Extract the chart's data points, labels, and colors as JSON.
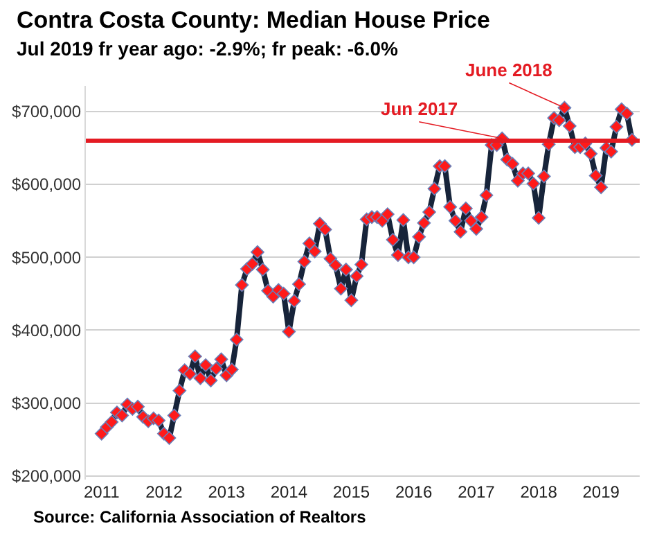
{
  "chart_data": {
    "type": "line",
    "title": "Contra Costa County: Median House Price",
    "subtitle": "Jul 2019 fr year ago: -2.9%; fr peak: -6.0%",
    "x": [
      "2011-01",
      "2011-02",
      "2011-03",
      "2011-04",
      "2011-05",
      "2011-06",
      "2011-07",
      "2011-08",
      "2011-09",
      "2011-10",
      "2011-11",
      "2011-12",
      "2012-01",
      "2012-02",
      "2012-03",
      "2012-04",
      "2012-05",
      "2012-06",
      "2012-07",
      "2012-08",
      "2012-09",
      "2012-10",
      "2012-11",
      "2012-12",
      "2013-01",
      "2013-02",
      "2013-03",
      "2013-04",
      "2013-05",
      "2013-06",
      "2013-07",
      "2013-08",
      "2013-09",
      "2013-10",
      "2013-11",
      "2013-12",
      "2014-01",
      "2014-02",
      "2014-03",
      "2014-04",
      "2014-05",
      "2014-06",
      "2014-07",
      "2014-08",
      "2014-09",
      "2014-10",
      "2014-11",
      "2014-12",
      "2015-01",
      "2015-02",
      "2015-03",
      "2015-04",
      "2015-05",
      "2015-06",
      "2015-07",
      "2015-08",
      "2015-09",
      "2015-10",
      "2015-11",
      "2015-12",
      "2016-01",
      "2016-02",
      "2016-03",
      "2016-04",
      "2016-05",
      "2016-06",
      "2016-07",
      "2016-08",
      "2016-09",
      "2016-10",
      "2016-11",
      "2016-12",
      "2017-01",
      "2017-02",
      "2017-03",
      "2017-04",
      "2017-05",
      "2017-06",
      "2017-07",
      "2017-08",
      "2017-09",
      "2017-10",
      "2017-11",
      "2017-12",
      "2018-01",
      "2018-02",
      "2018-03",
      "2018-04",
      "2018-05",
      "2018-06",
      "2018-07",
      "2018-08",
      "2018-09",
      "2018-10",
      "2018-11",
      "2018-12",
      "2019-01",
      "2019-02",
      "2019-03",
      "2019-04",
      "2019-05",
      "2019-06",
      "2019-07"
    ],
    "series": [
      {
        "color": "#17243a",
        "values": [
          258000,
          267000,
          274000,
          287000,
          283000,
          298000,
          292000,
          295000,
          281000,
          275000,
          279000,
          276000,
          258000,
          252000,
          283000,
          317000,
          345000,
          340000,
          364000,
          334000,
          352000,
          331000,
          347000,
          360000,
          338000,
          346000,
          387000,
          462000,
          484000,
          491000,
          507000,
          483000,
          454000,
          446000,
          455000,
          450000,
          398000,
          440000,
          463000,
          494000,
          519000,
          508000,
          546000,
          538000,
          498000,
          489000,
          457000,
          483000,
          441000,
          474000,
          490000,
          552000,
          555000,
          555000,
          550000,
          559000,
          524000,
          503000,
          551000,
          500000,
          500000,
          528000,
          547000,
          562000,
          594000,
          625000,
          625000,
          569000,
          550000,
          535000,
          567000,
          550000,
          539000,
          555000,
          585000,
          654000,
          654000,
          663000,
          634000,
          628000,
          605000,
          615000,
          615000,
          601000,
          554000,
          611000,
          655000,
          691000,
          688000,
          705000,
          680000,
          651000,
          651000,
          656000,
          642000,
          612000,
          596000,
          650000,
          645000,
          679000,
          703000,
          697000,
          661000
        ]
      }
    ],
    "xlim": [
      "2010-10-01",
      "2019-08-15"
    ],
    "xticks": [
      {
        "value": "2011-01",
        "label": "2011"
      },
      {
        "value": "2012-01",
        "label": "2012"
      },
      {
        "value": "2013-01",
        "label": "2013"
      },
      {
        "value": "2014-01",
        "label": "2014"
      },
      {
        "value": "2015-01",
        "label": "2015"
      },
      {
        "value": "2016-01",
        "label": "2016"
      },
      {
        "value": "2017-01",
        "label": "2017"
      },
      {
        "value": "2018-01",
        "label": "2018"
      },
      {
        "value": "2019-01",
        "label": "2019"
      }
    ],
    "ylim": [
      195000,
      735000
    ],
    "yticks": [
      {
        "value": 200000,
        "label": "$200,000"
      },
      {
        "value": 300000,
        "label": "$300,000"
      },
      {
        "value": 400000,
        "label": "$400,000"
      },
      {
        "value": 500000,
        "label": "$500,000"
      },
      {
        "value": 600000,
        "label": "$600,000"
      },
      {
        "value": 700000,
        "label": "$700,000"
      }
    ],
    "ref_lines": [
      {
        "axis": "y",
        "value": 660000,
        "color": "#e41b23"
      }
    ],
    "annotations": [
      {
        "text": "June 2018",
        "x": "2018-06",
        "y": 705000
      },
      {
        "text": "Jun 2017",
        "x": "2017-06",
        "y": 663000
      },
      "Source: California Association of Realtors"
    ],
    "grid": "y",
    "marker": "diamond",
    "line_style": "solid"
  }
}
